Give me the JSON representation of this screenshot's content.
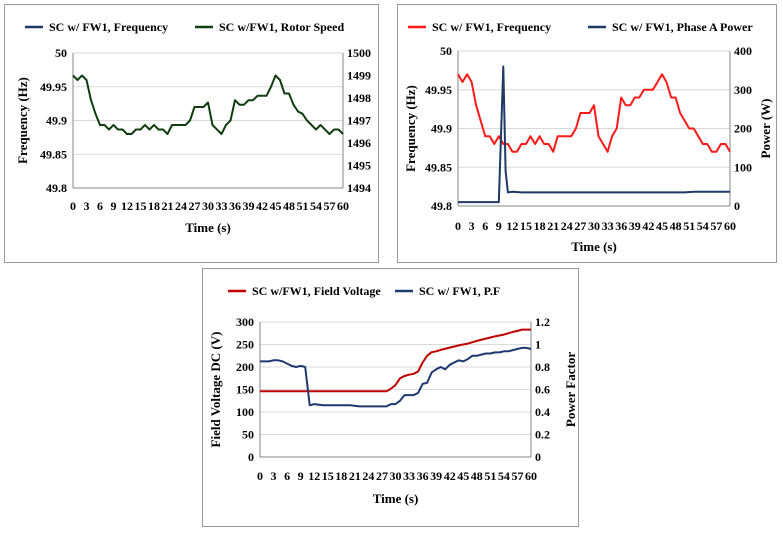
{
  "chart_data": [
    {
      "type": "line",
      "xlabel": "Time (s)",
      "ylabel": "Frequency (Hz)",
      "y2label": "",
      "x_ticks": [
        "0",
        "3",
        "6",
        "9",
        "12",
        "15",
        "18",
        "21",
        "24",
        "27",
        "30",
        "33",
        "36",
        "39",
        "42",
        "45",
        "48",
        "51",
        "54",
        "57",
        "60"
      ],
      "xlim": [
        0,
        60
      ],
      "ylim": [
        49.8,
        50
      ],
      "y_ticks": [
        "49.8",
        "49.85",
        "49.9",
        "49.95",
        "50"
      ],
      "y2lim": [
        1494,
        1500
      ],
      "y2_ticks": [
        "1494",
        "1495",
        "1496",
        "1497",
        "1498",
        "1499",
        "1500"
      ],
      "legend_position": "top",
      "series": [
        {
          "name": "SC w/ FW1, Frequency",
          "color": "#1f3864",
          "axis": "left",
          "legend_only": true,
          "values": []
        },
        {
          "name": "SC w/FW1, Rotor Speed",
          "color": "#0f3d0f",
          "axis": "right",
          "x": [
            0,
            1,
            2,
            3,
            4,
            5,
            6,
            7,
            8,
            9,
            10,
            11,
            12,
            13,
            14,
            15,
            16,
            17,
            18,
            19,
            20,
            21,
            22,
            23,
            24,
            25,
            26,
            27,
            28,
            29,
            30,
            31,
            32,
            33,
            34,
            35,
            36,
            37,
            38,
            39,
            40,
            41,
            42,
            43,
            44,
            45,
            46,
            47,
            48,
            49,
            50,
            51,
            52,
            53,
            54,
            55,
            56,
            57,
            58,
            59,
            60
          ],
          "values": [
            1499,
            1498.8,
            1499,
            1498.8,
            1497.9,
            1497.3,
            1496.8,
            1496.8,
            1496.6,
            1496.8,
            1496.6,
            1496.6,
            1496.4,
            1496.4,
            1496.6,
            1496.6,
            1496.8,
            1496.6,
            1496.8,
            1496.6,
            1496.6,
            1496.4,
            1496.8,
            1496.8,
            1496.8,
            1496.8,
            1497,
            1497.6,
            1497.6,
            1497.6,
            1497.8,
            1496.8,
            1496.6,
            1496.4,
            1496.8,
            1497,
            1497.9,
            1497.7,
            1497.7,
            1497.9,
            1497.9,
            1498.1,
            1498.1,
            1498.1,
            1498.5,
            1499,
            1498.8,
            1498.2,
            1498.2,
            1497.7,
            1497.4,
            1497.3,
            1497,
            1496.8,
            1496.6,
            1496.8,
            1496.6,
            1496.4,
            1496.6,
            1496.6,
            1496.4
          ]
        }
      ]
    },
    {
      "type": "line",
      "xlabel": "Time (s)",
      "ylabel": "Frequency (Hz)",
      "y2label": "Power (W)",
      "x_ticks": [
        "0",
        "3",
        "6",
        "9",
        "12",
        "15",
        "18",
        "21",
        "24",
        "27",
        "30",
        "33",
        "36",
        "39",
        "42",
        "45",
        "48",
        "51",
        "54",
        "57",
        "60"
      ],
      "xlim": [
        0,
        60
      ],
      "ylim": [
        49.8,
        50
      ],
      "y_ticks": [
        "49.8",
        "49.85",
        "49.9",
        "49.95",
        "50"
      ],
      "y2lim": [
        0,
        400
      ],
      "y2_ticks": [
        "0",
        "100",
        "200",
        "300",
        "400"
      ],
      "legend_position": "top",
      "series": [
        {
          "name": "SC w/ FW1, Frequency",
          "color": "#ff1a1a",
          "axis": "left",
          "x": [
            0,
            1,
            2,
            3,
            4,
            5,
            6,
            7,
            8,
            9,
            10,
            11,
            12,
            13,
            14,
            15,
            16,
            17,
            18,
            19,
            20,
            21,
            22,
            23,
            24,
            25,
            26,
            27,
            28,
            29,
            30,
            31,
            32,
            33,
            34,
            35,
            36,
            37,
            38,
            39,
            40,
            41,
            42,
            43,
            44,
            45,
            46,
            47,
            48,
            49,
            50,
            51,
            52,
            53,
            54,
            55,
            56,
            57,
            58,
            59,
            60
          ],
          "values": [
            49.97,
            49.96,
            49.97,
            49.96,
            49.93,
            49.91,
            49.89,
            49.89,
            49.88,
            49.89,
            49.88,
            49.88,
            49.87,
            49.87,
            49.88,
            49.88,
            49.89,
            49.88,
            49.89,
            49.88,
            49.88,
            49.87,
            49.89,
            49.89,
            49.89,
            49.89,
            49.9,
            49.92,
            49.92,
            49.92,
            49.93,
            49.89,
            49.88,
            49.87,
            49.89,
            49.9,
            49.94,
            49.93,
            49.93,
            49.94,
            49.94,
            49.95,
            49.95,
            49.95,
            49.96,
            49.97,
            49.96,
            49.94,
            49.94,
            49.92,
            49.91,
            49.9,
            49.9,
            49.89,
            49.88,
            49.88,
            49.87,
            49.87,
            49.88,
            49.88,
            49.87
          ]
        },
        {
          "name": "SC w/ FW1, Phase A Power",
          "color": "#1f3864",
          "axis": "right",
          "x": [
            0,
            2,
            4,
            6,
            8,
            9,
            10,
            10.5,
            11,
            12,
            14,
            20,
            30,
            40,
            50,
            52,
            55,
            60
          ],
          "values": [
            10,
            10,
            10,
            10,
            10,
            10,
            360,
            90,
            35,
            37,
            35,
            35,
            35,
            35,
            35,
            37,
            37,
            37
          ]
        }
      ]
    },
    {
      "type": "line",
      "xlabel": "Time (s)",
      "ylabel": "Field Voltage DC (V)",
      "y2label": "Power Factor",
      "x_ticks": [
        "0",
        "3",
        "6",
        "9",
        "12",
        "15",
        "18",
        "21",
        "24",
        "27",
        "30",
        "33",
        "36",
        "39",
        "42",
        "45",
        "48",
        "51",
        "54",
        "57",
        "60"
      ],
      "xlim": [
        0,
        60
      ],
      "ylim": [
        0,
        300
      ],
      "y_ticks": [
        "0",
        "50",
        "100",
        "150",
        "200",
        "250",
        "300"
      ],
      "y2lim": [
        0,
        1.2
      ],
      "y2_ticks": [
        "0",
        "0.2",
        "0.4",
        "0.6",
        "0.8",
        "1",
        "1.2"
      ],
      "legend_position": "top",
      "series": [
        {
          "name": "SC w/FW1, Field Voltage",
          "color": "#c00000",
          "axis": "left",
          "x": [
            0,
            28,
            29,
            30,
            31,
            32,
            33,
            34,
            35,
            36,
            37,
            38,
            39,
            40,
            42,
            44,
            46,
            48,
            50,
            52,
            54,
            56,
            57,
            58,
            60
          ],
          "values": [
            146,
            146,
            152,
            160,
            175,
            180,
            183,
            185,
            190,
            210,
            225,
            233,
            235,
            238,
            243,
            248,
            252,
            258,
            263,
            268,
            272,
            278,
            280,
            283,
            283
          ]
        },
        {
          "name": "SC w/ FW1, P.F",
          "color": "#1f3870",
          "axis": "right",
          "x": [
            0,
            1,
            2,
            3,
            4,
            5,
            6,
            7,
            8,
            9,
            10,
            11,
            12,
            14,
            16,
            18,
            20,
            22,
            24,
            26,
            28,
            29,
            30,
            31,
            32,
            33,
            34,
            35,
            36,
            37,
            38,
            39,
            40,
            41,
            42,
            43,
            44,
            45,
            46,
            47,
            48,
            49,
            50,
            51,
            52,
            53,
            54,
            55,
            56,
            57,
            58,
            59,
            60
          ],
          "values": [
            0.85,
            0.85,
            0.85,
            0.86,
            0.86,
            0.85,
            0.83,
            0.81,
            0.8,
            0.81,
            0.8,
            0.46,
            0.47,
            0.46,
            0.46,
            0.46,
            0.46,
            0.45,
            0.45,
            0.45,
            0.45,
            0.47,
            0.47,
            0.5,
            0.55,
            0.55,
            0.55,
            0.57,
            0.65,
            0.66,
            0.75,
            0.78,
            0.8,
            0.78,
            0.82,
            0.84,
            0.86,
            0.85,
            0.87,
            0.9,
            0.9,
            0.91,
            0.92,
            0.92,
            0.93,
            0.93,
            0.94,
            0.94,
            0.95,
            0.96,
            0.97,
            0.97,
            0.96
          ]
        }
      ]
    }
  ]
}
